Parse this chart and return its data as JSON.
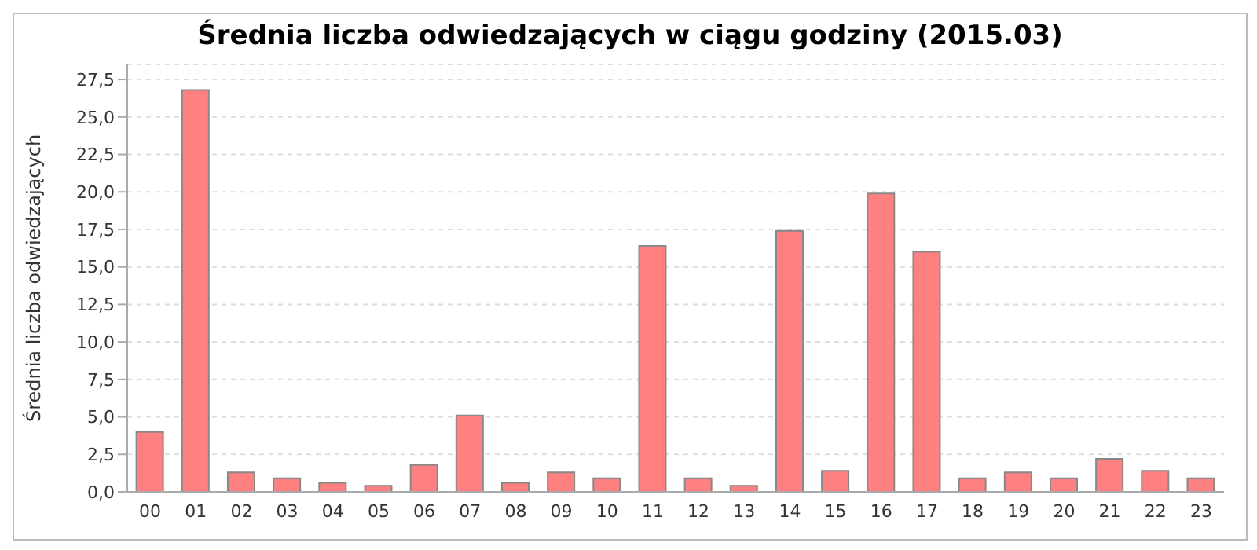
{
  "chart_data": {
    "type": "bar",
    "title": "Średnia liczba odwiedzających w ciągu godziny (2015.03)",
    "ylabel": "Średnia liczba odwiedzających",
    "categories": [
      "00",
      "01",
      "02",
      "03",
      "04",
      "05",
      "06",
      "07",
      "08",
      "09",
      "10",
      "11",
      "12",
      "13",
      "14",
      "15",
      "16",
      "17",
      "18",
      "19",
      "20",
      "21",
      "22",
      "23"
    ],
    "values": [
      4.0,
      26.8,
      1.3,
      0.9,
      0.6,
      0.4,
      1.8,
      5.1,
      0.6,
      1.3,
      0.9,
      16.4,
      0.9,
      0.4,
      17.4,
      1.4,
      19.9,
      16.0,
      0.9,
      1.3,
      0.9,
      2.2,
      1.4,
      0.9
    ],
    "color": "#ff8080",
    "ylim": [
      0,
      28.5
    ],
    "yticks": [
      {
        "value": 0,
        "label": "0,0"
      },
      {
        "value": 2.5,
        "label": "2,5"
      },
      {
        "value": 5,
        "label": "5,0"
      },
      {
        "value": 7.5,
        "label": "7,5"
      },
      {
        "value": 10,
        "label": "10,0"
      },
      {
        "value": 12.5,
        "label": "12,5"
      },
      {
        "value": 15,
        "label": "15,0"
      },
      {
        "value": 17.5,
        "label": "17,5"
      },
      {
        "value": 20,
        "label": "20,0"
      },
      {
        "value": 22.5,
        "label": "22,5"
      },
      {
        "value": 25,
        "label": "25,0"
      },
      {
        "value": 27.5,
        "label": "27,5"
      }
    ],
    "grid": "y",
    "legend": false
  }
}
